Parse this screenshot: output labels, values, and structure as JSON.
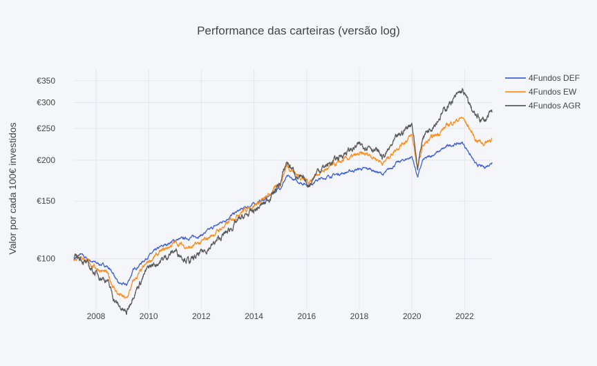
{
  "chart_data": {
    "type": "line",
    "title": "Performance das carteiras (versão log)",
    "xlabel": "",
    "ylabel": "Valor por cada 100€ investidos",
    "y_scale": "log",
    "x_axis": "date",
    "xlim": [
      "2007-03-01",
      "2023-01-15"
    ],
    "ylim": [
      70,
      380
    ],
    "x_ticks": [
      "2008",
      "2010",
      "2012",
      "2014",
      "2016",
      "2018",
      "2020",
      "2022"
    ],
    "y_ticks": [
      {
        "value": 100,
        "label": "€100"
      },
      {
        "value": 150,
        "label": "€150"
      },
      {
        "value": 200,
        "label": "€200"
      },
      {
        "value": 250,
        "label": "€250"
      },
      {
        "value": 300,
        "label": "€300"
      },
      {
        "value": 350,
        "label": "€350"
      }
    ],
    "grid": true,
    "legend_position": "top-right",
    "series": [
      {
        "name": "4Fundos DEF",
        "color": "#3b5fd9",
        "points": [
          [
            "2007-03-01",
            100
          ],
          [
            "2007-06-01",
            103
          ],
          [
            "2007-10-01",
            99
          ],
          [
            "2008-01-01",
            97
          ],
          [
            "2008-06-01",
            95
          ],
          [
            "2008-09-01",
            90
          ],
          [
            "2008-11-01",
            84
          ],
          [
            "2009-03-01",
            83
          ],
          [
            "2009-06-01",
            92
          ],
          [
            "2010-01-01",
            102
          ],
          [
            "2010-06-01",
            108
          ],
          [
            "2011-01-01",
            114
          ],
          [
            "2011-08-01",
            116
          ],
          [
            "2012-01-01",
            118
          ],
          [
            "2012-06-01",
            124
          ],
          [
            "2013-01-01",
            133
          ],
          [
            "2013-06-01",
            140
          ],
          [
            "2014-01-01",
            147
          ],
          [
            "2014-06-01",
            152
          ],
          [
            "2015-01-01",
            165
          ],
          [
            "2015-04-01",
            178
          ],
          [
            "2015-09-01",
            172
          ],
          [
            "2016-02-01",
            168
          ],
          [
            "2016-06-01",
            174
          ],
          [
            "2017-01-01",
            180
          ],
          [
            "2017-06-01",
            183
          ],
          [
            "2018-01-01",
            188
          ],
          [
            "2018-06-01",
            188
          ],
          [
            "2018-12-01",
            181
          ],
          [
            "2019-06-01",
            196
          ],
          [
            "2020-01-01",
            205
          ],
          [
            "2020-03-20",
            178
          ],
          [
            "2020-06-01",
            200
          ],
          [
            "2021-01-01",
            212
          ],
          [
            "2021-06-01",
            222
          ],
          [
            "2021-12-01",
            226
          ],
          [
            "2022-03-01",
            212
          ],
          [
            "2022-06-01",
            194
          ],
          [
            "2022-10-01",
            190
          ],
          [
            "2023-01-15",
            197
          ]
        ]
      },
      {
        "name": "4Fundos EW",
        "color": "#ff8c1a",
        "points": [
          [
            "2007-03-01",
            100
          ],
          [
            "2007-06-01",
            102
          ],
          [
            "2007-10-01",
            97
          ],
          [
            "2008-01-01",
            94
          ],
          [
            "2008-06-01",
            90
          ],
          [
            "2008-09-01",
            82
          ],
          [
            "2008-11-01",
            78
          ],
          [
            "2009-03-01",
            75
          ],
          [
            "2009-06-01",
            85
          ],
          [
            "2010-01-01",
            98
          ],
          [
            "2010-06-01",
            104
          ],
          [
            "2011-01-01",
            112
          ],
          [
            "2011-08-01",
            108
          ],
          [
            "2012-01-01",
            112
          ],
          [
            "2012-06-01",
            118
          ],
          [
            "2013-01-01",
            128
          ],
          [
            "2013-06-01",
            138
          ],
          [
            "2014-01-01",
            146
          ],
          [
            "2014-06-01",
            152
          ],
          [
            "2015-01-01",
            170
          ],
          [
            "2015-04-01",
            193
          ],
          [
            "2015-09-01",
            180
          ],
          [
            "2016-02-01",
            172
          ],
          [
            "2016-06-01",
            182
          ],
          [
            "2017-01-01",
            192
          ],
          [
            "2017-06-01",
            200
          ],
          [
            "2018-01-01",
            208
          ],
          [
            "2018-06-01",
            208
          ],
          [
            "2018-12-01",
            196
          ],
          [
            "2019-06-01",
            218
          ],
          [
            "2020-01-01",
            238
          ],
          [
            "2020-03-20",
            188
          ],
          [
            "2020-06-01",
            222
          ],
          [
            "2021-01-01",
            242
          ],
          [
            "2021-06-01",
            258
          ],
          [
            "2021-12-01",
            270
          ],
          [
            "2022-03-01",
            252
          ],
          [
            "2022-06-01",
            232
          ],
          [
            "2022-10-01",
            225
          ],
          [
            "2023-01-15",
            234
          ]
        ]
      },
      {
        "name": "4Fundos AGR",
        "color": "#5a5a5a",
        "points": [
          [
            "2007-03-01",
            100
          ],
          [
            "2007-06-01",
            101
          ],
          [
            "2007-10-01",
            94
          ],
          [
            "2008-01-01",
            90
          ],
          [
            "2008-06-01",
            86
          ],
          [
            "2008-09-01",
            76
          ],
          [
            "2008-11-01",
            72
          ],
          [
            "2009-03-01",
            68
          ],
          [
            "2009-06-01",
            78
          ],
          [
            "2010-01-01",
            94
          ],
          [
            "2010-06-01",
            98
          ],
          [
            "2011-01-01",
            106
          ],
          [
            "2011-08-01",
            98
          ],
          [
            "2012-01-01",
            104
          ],
          [
            "2012-06-01",
            110
          ],
          [
            "2013-01-01",
            121
          ],
          [
            "2013-06-01",
            131
          ],
          [
            "2014-01-01",
            140
          ],
          [
            "2014-06-01",
            148
          ],
          [
            "2015-01-01",
            170
          ],
          [
            "2015-04-01",
            198
          ],
          [
            "2015-09-01",
            178
          ],
          [
            "2016-02-01",
            168
          ],
          [
            "2016-06-01",
            186
          ],
          [
            "2017-01-01",
            198
          ],
          [
            "2017-06-01",
            210
          ],
          [
            "2018-01-01",
            222
          ],
          [
            "2018-06-01",
            222
          ],
          [
            "2018-12-01",
            204
          ],
          [
            "2019-06-01",
            232
          ],
          [
            "2020-01-01",
            262
          ],
          [
            "2020-03-20",
            188
          ],
          [
            "2020-06-01",
            238
          ],
          [
            "2021-01-01",
            268
          ],
          [
            "2021-06-01",
            298
          ],
          [
            "2021-12-01",
            326
          ],
          [
            "2022-03-01",
            298
          ],
          [
            "2022-06-01",
            272
          ],
          [
            "2022-10-01",
            264
          ],
          [
            "2023-01-15",
            280
          ]
        ]
      }
    ]
  }
}
